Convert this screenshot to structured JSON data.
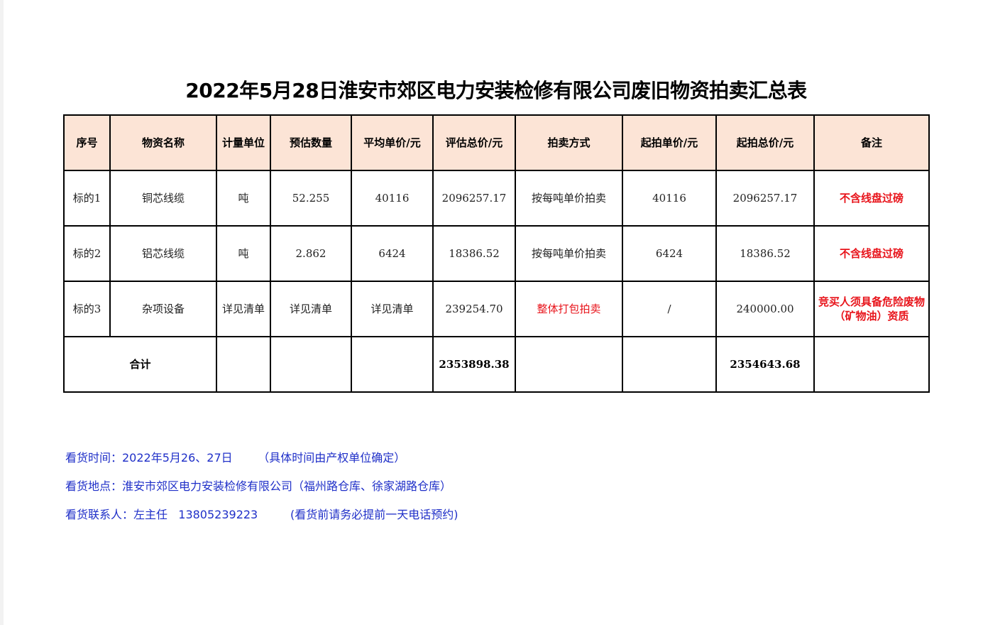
{
  "title": "2022年5月28日淮安市郊区电力安装检修有限公司废旧物资拍卖汇总表",
  "colors": {
    "header_bg": "#fce4d6",
    "highlight_red": "#e8141b",
    "notes_blue": "#1f2fc8"
  },
  "table": {
    "headers": [
      "序号",
      "物资名称",
      "计量单位",
      "预估数量",
      "平均单价/元",
      "评估总价/元",
      "拍卖方式",
      "起拍单价/元",
      "起拍总价/元",
      "备注"
    ],
    "rows": [
      [
        "标的1",
        "铜芯线缆",
        "吨",
        "52.255",
        "40116",
        "2096257.17",
        "按每吨单价拍卖",
        "40116",
        "2096257.17",
        "不含线盘过磅"
      ],
      [
        "标的2",
        "铝芯线缆",
        "吨",
        "2.862",
        "6424",
        "18386.52",
        "按每吨单价拍卖",
        "6424",
        "18386.52",
        "不含线盘过磅"
      ],
      [
        "标的3",
        "杂项设备",
        "详见清单",
        "详见清单",
        "详见清单",
        "239254.70",
        "整体打包拍卖",
        "/",
        "240000.00",
        "竞买人须具备危险废物（矿物油）资质"
      ]
    ],
    "total": {
      "label": "合计",
      "eval_total": "2353898.38",
      "start_total": "2354643.68"
    }
  },
  "notes": [
    "看货时间：2022年5月26、27日       （具体时间由产权单位确定）",
    "看货地点：淮安市郊区电力安装检修有限公司（福州路仓库、徐家湖路仓库）",
    "看货联系人：左主任   13805239223         (看货前请务必提前一天电话预约)"
  ]
}
